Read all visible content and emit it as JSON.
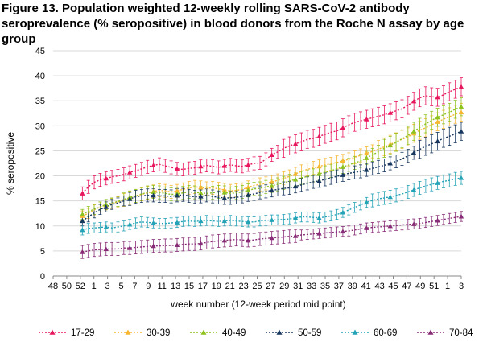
{
  "chart_data": {
    "type": "line",
    "title": "Figure 13. Population weighted 12-weekly rolling SARS-CoV-2 antibody seroprevalence (% seropositive) in blood donors from the Roche N assay by age group",
    "xlabel": "week number  (12-week period mid point)",
    "ylabel": "% seropositive",
    "ylim": [
      0,
      45
    ],
    "yticks": [
      0,
      5,
      10,
      15,
      20,
      25,
      30,
      35,
      40,
      45
    ],
    "x_tick_labels": [
      "48",
      "50",
      "52",
      "1",
      "3",
      "5",
      "7",
      "9",
      "11",
      "13",
      "15",
      "17",
      "19",
      "21",
      "23",
      "25",
      "27",
      "29",
      "31",
      "33",
      "35",
      "37",
      "39",
      "41",
      "43",
      "45",
      "47",
      "49",
      "51",
      "1",
      "3"
    ],
    "grid": "horizontal",
    "legend_position": "bottom",
    "error_bars": true,
    "series": [
      {
        "name": "17-29",
        "color": "#e8175d",
        "values": [
          16.5,
          17.8,
          18.7,
          19.2,
          19.5,
          19.8,
          20.0,
          20.3,
          20.7,
          21.0,
          21.4,
          21.8,
          22.1,
          22.3,
          22.0,
          21.7,
          21.4,
          21.3,
          21.5,
          21.6,
          21.9,
          22.1,
          21.9,
          21.7,
          22.0,
          22.2,
          22.0,
          21.9,
          22.2,
          22.5,
          22.6,
          23.3,
          24.2,
          24.8,
          25.5,
          26.0,
          26.4,
          26.8,
          27.3,
          27.5,
          27.9,
          28.3,
          28.7,
          29.0,
          29.6,
          30.2,
          30.7,
          31.0,
          31.3,
          31.6,
          31.9,
          32.2,
          32.6,
          33.0,
          33.4,
          34.1,
          34.9,
          35.6,
          36.0,
          35.8,
          35.7,
          36.2,
          36.8,
          37.3,
          37.8
        ]
      },
      {
        "name": "30-39",
        "color": "#f7b731",
        "values": [
          12.0,
          12.5,
          13.2,
          13.8,
          14.2,
          14.5,
          14.8,
          15.2,
          15.6,
          16.0,
          16.3,
          16.6,
          16.9,
          17.1,
          17.0,
          16.8,
          17.0,
          17.3,
          17.6,
          17.8,
          17.7,
          17.5,
          17.6,
          17.4,
          17.2,
          17.0,
          17.1,
          17.3,
          17.7,
          18.1,
          18.3,
          18.5,
          18.8,
          19.1,
          19.5,
          19.9,
          20.4,
          20.9,
          21.3,
          21.6,
          21.9,
          22.2,
          22.4,
          22.7,
          23.0,
          23.3,
          23.7,
          24.1,
          24.5,
          24.9,
          25.3,
          25.8,
          26.3,
          26.8,
          27.3,
          27.8,
          28.5,
          29.1,
          29.6,
          30.2,
          30.8,
          31.3,
          31.8,
          32.3,
          32.7
        ]
      },
      {
        "name": "40-49",
        "color": "#8dc21f",
        "values": [
          12.3,
          12.9,
          13.3,
          13.8,
          14.3,
          14.6,
          14.9,
          15.3,
          15.7,
          16.0,
          16.4,
          16.7,
          16.8,
          16.7,
          16.5,
          16.3,
          16.4,
          16.6,
          16.8,
          16.7,
          16.6,
          16.5,
          16.6,
          16.8,
          16.7,
          16.5,
          16.6,
          16.8,
          17.1,
          17.4,
          17.5,
          17.8,
          18.0,
          18.3,
          18.6,
          19.0,
          19.3,
          19.6,
          19.9,
          20.1,
          20.4,
          20.7,
          21.0,
          21.4,
          21.8,
          22.2,
          22.6,
          23.0,
          23.6,
          24.2,
          24.8,
          25.5,
          26.1,
          26.7,
          27.4,
          28.1,
          28.9,
          29.7,
          30.4,
          31.1,
          31.7,
          32.2,
          32.7,
          33.3,
          33.8
        ]
      },
      {
        "name": "50-59",
        "color": "#17375e",
        "values": [
          11.0,
          11.8,
          12.6,
          13.3,
          13.8,
          14.3,
          14.6,
          15.0,
          15.4,
          15.8,
          16.0,
          16.1,
          16.1,
          16.0,
          16.0,
          15.9,
          16.1,
          16.2,
          16.0,
          15.8,
          15.9,
          16.1,
          15.9,
          15.7,
          15.6,
          15.6,
          15.7,
          15.9,
          16.2,
          16.4,
          16.7,
          16.9,
          17.1,
          17.3,
          17.5,
          17.6,
          17.9,
          18.2,
          18.5,
          18.8,
          19.0,
          19.3,
          19.6,
          19.9,
          20.2,
          20.5,
          20.7,
          20.9,
          21.2,
          21.5,
          21.8,
          22.1,
          22.5,
          22.9,
          23.4,
          24.0,
          24.6,
          25.3,
          25.9,
          26.4,
          26.9,
          27.5,
          27.9,
          28.4,
          28.9
        ]
      },
      {
        "name": "60-69",
        "color": "#24a2b6",
        "values": [
          9.2,
          9.5,
          9.6,
          9.7,
          9.8,
          9.6,
          9.8,
          10.0,
          10.3,
          10.6,
          10.8,
          10.7,
          10.6,
          10.5,
          10.5,
          10.6,
          10.7,
          10.9,
          11.0,
          10.9,
          11.0,
          11.1,
          11.0,
          10.9,
          11.0,
          11.1,
          11.0,
          10.9,
          10.8,
          10.8,
          11.0,
          11.1,
          11.2,
          11.2,
          11.3,
          11.4,
          11.6,
          11.8,
          11.8,
          11.7,
          11.6,
          11.8,
          12.0,
          12.3,
          12.7,
          13.2,
          13.7,
          14.2,
          14.7,
          15.1,
          15.4,
          15.6,
          15.8,
          16.1,
          16.4,
          16.8,
          17.2,
          17.6,
          18.0,
          18.3,
          18.6,
          18.9,
          19.1,
          19.4,
          19.6
        ]
      },
      {
        "name": "70-84",
        "color": "#872b76",
        "values": [
          4.8,
          5.0,
          5.2,
          5.3,
          5.4,
          5.4,
          5.4,
          5.6,
          5.6,
          5.7,
          5.8,
          5.9,
          6.0,
          6.0,
          6.1,
          6.1,
          6.2,
          6.3,
          6.4,
          6.4,
          6.5,
          6.7,
          6.9,
          7.0,
          7.1,
          7.2,
          7.3,
          7.2,
          7.1,
          7.2,
          7.4,
          7.5,
          7.6,
          7.7,
          7.8,
          7.9,
          8.0,
          8.2,
          8.3,
          8.4,
          8.5,
          8.6,
          8.7,
          8.8,
          8.9,
          9.0,
          9.2,
          9.4,
          9.6,
          9.7,
          9.8,
          9.9,
          10.0,
          10.1,
          10.2,
          10.3,
          10.4,
          10.5,
          10.7,
          10.9,
          11.1,
          11.3,
          11.5,
          11.7,
          11.9
        ]
      }
    ]
  }
}
